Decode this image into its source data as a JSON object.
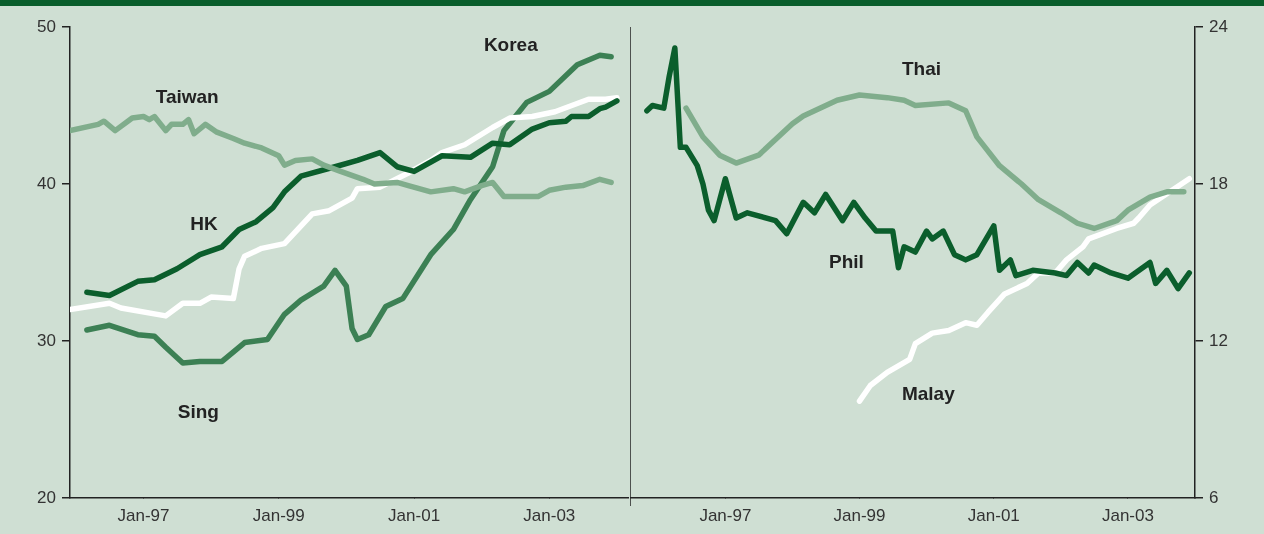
{
  "chart_data": [
    {
      "type": "line",
      "annotations": [
        "Sing"
      ],
      "xlim": [
        "1995-12",
        "2004-03"
      ],
      "xticks": [
        {
          "value": "1997-01",
          "label": "Jan-97"
        },
        {
          "value": "1999-01",
          "label": "Jan-99"
        },
        {
          "value": "2001-01",
          "label": "Jan-01"
        },
        {
          "value": "2003-01",
          "label": "Jan-03"
        }
      ],
      "ylim": [
        20,
        50
      ],
      "yticks": [
        20,
        30,
        40,
        50
      ],
      "series": [
        {
          "name": "Taiwan",
          "color": "#80ad8c",
          "x": [
            "1995-12",
            "1996-05",
            "1996-06",
            "1996-08",
            "1996-11",
            "1997-01",
            "1997-02",
            "1997-03",
            "1997-05",
            "1997-06",
            "1997-08",
            "1997-09",
            "1997-10",
            "1997-12",
            "1998-02",
            "1998-05",
            "1998-07",
            "1998-10",
            "1999-01",
            "1999-02",
            "1999-04",
            "1999-07",
            "1999-09",
            "1999-12",
            "2000-04",
            "2000-06",
            "2000-10",
            "2000-12",
            "2001-04",
            "2001-08",
            "2001-10",
            "2002-01",
            "2002-03",
            "2002-05",
            "2002-08",
            "2002-11",
            "2003-01",
            "2003-04",
            "2003-07",
            "2003-10",
            "2003-12"
          ],
          "values": [
            43.4,
            43.8,
            44.0,
            43.4,
            44.2,
            44.3,
            44.1,
            44.3,
            43.4,
            43.8,
            43.8,
            44.1,
            43.2,
            43.8,
            43.3,
            42.9,
            42.6,
            42.3,
            41.8,
            41.2,
            41.5,
            41.6,
            41.2,
            40.8,
            40.3,
            40.0,
            40.1,
            39.9,
            39.5,
            39.7,
            39.5,
            39.9,
            40.1,
            39.2,
            39.2,
            39.2,
            39.6,
            39.8,
            39.9,
            40.3,
            40.1
          ]
        },
        {
          "name": "HK",
          "color": "#0b5e2c",
          "x": [
            "1996-03",
            "1996-07",
            "1996-12",
            "1997-03",
            "1997-07",
            "1997-11",
            "1998-03",
            "1998-06",
            "1998-09",
            "1998-12",
            "1999-02",
            "1999-05",
            "1999-11",
            "2000-03",
            "2000-07",
            "2000-10",
            "2001-01",
            "2001-06",
            "2001-11",
            "2002-03",
            "2002-06",
            "2002-10",
            "2003-01",
            "2003-04",
            "2003-05",
            "2003-08",
            "2003-10",
            "2003-11",
            "2004-01"
          ],
          "values": [
            33.1,
            32.9,
            33.8,
            33.9,
            34.6,
            35.5,
            36.0,
            37.1,
            37.6,
            38.5,
            39.5,
            40.5,
            41.1,
            41.5,
            42.0,
            41.1,
            40.8,
            41.8,
            41.7,
            42.6,
            42.5,
            43.5,
            43.9,
            44.0,
            44.3,
            44.3,
            44.8,
            44.9,
            45.3
          ]
        },
        {
          "color": "#ffffff",
          "x": [
            "1995-12",
            "1996-07",
            "1996-09",
            "1997-05",
            "1997-08",
            "1997-11",
            "1998-01",
            "1998-05",
            "1998-06",
            "1998-07",
            "1998-10",
            "1999-02",
            "1999-07",
            "1999-10",
            "2000-02",
            "2000-03",
            "2000-07",
            "2000-12",
            "2001-04",
            "2001-06",
            "2001-10",
            "2002-03",
            "2002-06",
            "2002-10",
            "2003-02",
            "2003-08",
            "2003-11",
            "2004-01"
          ],
          "values": [
            32.0,
            32.4,
            32.1,
            31.6,
            32.4,
            32.4,
            32.8,
            32.7,
            34.6,
            35.4,
            35.9,
            36.2,
            38.1,
            38.3,
            39.1,
            39.7,
            39.8,
            40.7,
            41.5,
            42.0,
            42.5,
            43.6,
            44.2,
            44.3,
            44.6,
            45.4,
            45.4,
            45.5
          ]
        },
        {
          "name": "Korea",
          "color": "#3c8054",
          "x": [
            "1996-03",
            "1996-07",
            "1996-12",
            "1997-03",
            "1997-05",
            "1997-08",
            "1997-11",
            "1998-03",
            "1998-07",
            "1998-11",
            "1999-02",
            "1999-05",
            "1999-09",
            "1999-11",
            "2000-01",
            "2000-02",
            "2000-03",
            "2000-05",
            "2000-08",
            "2000-11",
            "2001-04",
            "2001-08",
            "2001-11",
            "2002-03",
            "2002-05",
            "2002-09",
            "2003-01",
            "2003-06",
            "2003-10",
            "2003-12"
          ],
          "values": [
            30.7,
            31.0,
            30.4,
            30.3,
            29.6,
            28.6,
            28.7,
            28.7,
            29.9,
            30.1,
            31.7,
            32.6,
            33.5,
            34.5,
            33.5,
            30.8,
            30.1,
            30.4,
            32.2,
            32.7,
            35.5,
            37.1,
            39.0,
            41.1,
            43.4,
            45.2,
            45.9,
            47.6,
            48.2,
            48.1
          ]
        }
      ]
    },
    {
      "type": "line",
      "xlim": [
        "1995-08",
        "2004-01"
      ],
      "xticks": [
        {
          "value": "1997-01",
          "label": "Jan-97"
        },
        {
          "value": "1999-01",
          "label": "Jan-99"
        },
        {
          "value": "2001-01",
          "label": "Jan-01"
        },
        {
          "value": "2003-01",
          "label": "Jan-03"
        }
      ],
      "y2lim": [
        6,
        24
      ],
      "y2ticks": [
        6,
        12,
        18,
        24
      ],
      "series": [
        {
          "name": "Thai",
          "color": "#80ad8c",
          "axis": "y2",
          "x": [
            "1996-06",
            "1996-09",
            "1996-12",
            "1997-03",
            "1997-07",
            "1998-01",
            "1998-03",
            "1998-09",
            "1999-01",
            "1999-06",
            "1999-09",
            "1999-11",
            "2000-05",
            "2000-08",
            "2000-10",
            "2001-02",
            "2001-06",
            "2001-09",
            "2002-01",
            "2002-04",
            "2002-07",
            "2002-11",
            "2003-01",
            "2003-05",
            "2003-08",
            "2003-11"
          ],
          "values": [
            20.9,
            19.8,
            19.1,
            18.8,
            19.1,
            20.3,
            20.6,
            21.2,
            21.4,
            21.3,
            21.2,
            21.0,
            21.1,
            20.8,
            19.8,
            18.7,
            18.0,
            17.4,
            16.9,
            16.5,
            16.3,
            16.6,
            17.0,
            17.5,
            17.7,
            17.7
          ]
        },
        {
          "name": "Phil",
          "color": "#0b5e2c",
          "axis": "y2",
          "x": [
            "1995-11",
            "1995-12",
            "1996-02",
            "1996-03",
            "1996-04",
            "1996-05",
            "1996-06",
            "1996-08",
            "1996-09",
            "1996-10",
            "1996-11",
            "1997-01",
            "1997-03",
            "1997-05",
            "1997-10",
            "1997-12",
            "1998-03",
            "1998-05",
            "1998-07",
            "1998-10",
            "1998-12",
            "1999-02",
            "1999-04",
            "1999-07",
            "1999-08",
            "1999-09",
            "1999-11",
            "2000-01",
            "2000-02",
            "2000-04",
            "2000-06",
            "2000-08",
            "2000-10",
            "2001-01",
            "2001-02",
            "2001-04",
            "2001-05",
            "2001-08",
            "2001-12",
            "2002-02",
            "2002-04",
            "2002-06",
            "2002-07",
            "2002-10",
            "2003-01",
            "2003-05",
            "2003-06",
            "2003-08",
            "2003-10",
            "2003-12"
          ],
          "values": [
            20.8,
            21.0,
            20.9,
            22.1,
            23.2,
            19.4,
            19.4,
            18.7,
            18.0,
            17.0,
            16.6,
            18.2,
            16.7,
            16.9,
            16.6,
            16.1,
            17.3,
            16.9,
            17.6,
            16.6,
            17.3,
            16.7,
            16.2,
            16.2,
            14.8,
            15.6,
            15.4,
            16.2,
            15.9,
            16.2,
            15.3,
            15.1,
            15.3,
            16.4,
            14.7,
            15.1,
            14.5,
            14.7,
            14.6,
            14.5,
            15.0,
            14.6,
            14.9,
            14.6,
            14.4,
            15.0,
            14.2,
            14.7,
            14.0,
            14.6
          ]
        },
        {
          "name": "Malay",
          "color": "#ffffff",
          "axis": "y2",
          "x": [
            "1999-01",
            "1999-03",
            "1999-06",
            "1999-10",
            "1999-11",
            "2000-02",
            "2000-05",
            "2000-08",
            "2000-10",
            "2000-12",
            "2001-03",
            "2001-07",
            "2001-09",
            "2001-12",
            "2002-02",
            "2002-05",
            "2002-06",
            "2002-11",
            "2003-02",
            "2003-03",
            "2003-05",
            "2003-12"
          ],
          "values": [
            9.7,
            10.3,
            10.8,
            11.3,
            11.9,
            12.3,
            12.4,
            12.7,
            12.6,
            13.1,
            13.8,
            14.2,
            14.6,
            14.6,
            15.1,
            15.6,
            15.9,
            16.3,
            16.5,
            16.7,
            17.2,
            18.2
          ]
        }
      ]
    }
  ]
}
